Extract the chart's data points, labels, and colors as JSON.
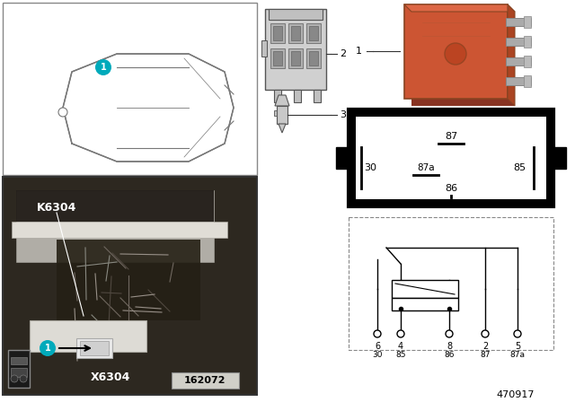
{
  "bg_color": "#ffffff",
  "part_number": "470917",
  "ref_number": "162072",
  "relay_orange": "#CC5533",
  "relay_dark": "#AA3311",
  "teal": "#00AABB",
  "photo_bg": "#3a3530",
  "k_label": "K6304",
  "x_label": "X6304",
  "pin_box_labels": [
    "87",
    "87a",
    "85",
    "30",
    "86"
  ],
  "circuit_pin_row1": [
    "6",
    "4",
    "8",
    "2",
    "5"
  ],
  "circuit_pin_row2": [
    "30",
    "85",
    "86",
    "87",
    "87a"
  ]
}
